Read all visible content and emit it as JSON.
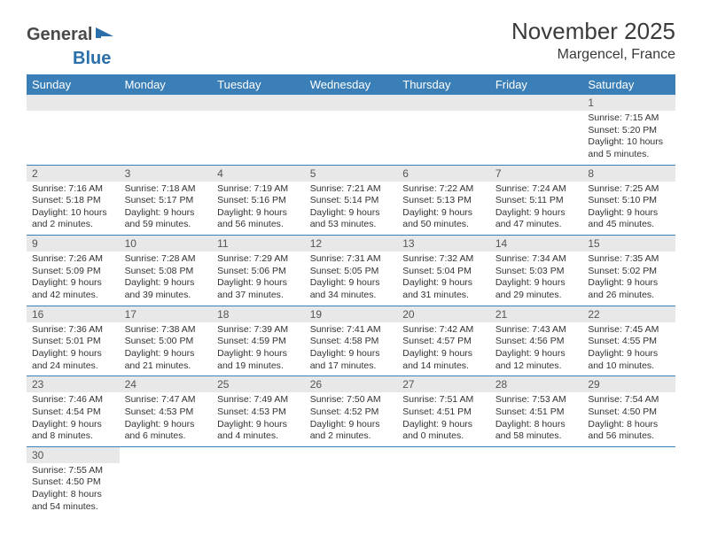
{
  "logo": {
    "part1": "General",
    "part2": "Blue"
  },
  "title": "November 2025",
  "location": "Margencel, France",
  "colors": {
    "header_bg": "#3a7fb8",
    "header_text": "#ffffff",
    "daynum_bg": "#e8e8e8",
    "row_border": "#3a7fb8",
    "logo_gray": "#4a4a4a",
    "logo_blue": "#2b6fab"
  },
  "weekdays": [
    "Sunday",
    "Monday",
    "Tuesday",
    "Wednesday",
    "Thursday",
    "Friday",
    "Saturday"
  ],
  "weeks": [
    [
      {
        "blank": true
      },
      {
        "blank": true
      },
      {
        "blank": true
      },
      {
        "blank": true
      },
      {
        "blank": true
      },
      {
        "blank": true
      },
      {
        "n": "1",
        "sunrise": "Sunrise: 7:15 AM",
        "sunset": "Sunset: 5:20 PM",
        "day1": "Daylight: 10 hours",
        "day2": "and 5 minutes."
      }
    ],
    [
      {
        "n": "2",
        "sunrise": "Sunrise: 7:16 AM",
        "sunset": "Sunset: 5:18 PM",
        "day1": "Daylight: 10 hours",
        "day2": "and 2 minutes."
      },
      {
        "n": "3",
        "sunrise": "Sunrise: 7:18 AM",
        "sunset": "Sunset: 5:17 PM",
        "day1": "Daylight: 9 hours",
        "day2": "and 59 minutes."
      },
      {
        "n": "4",
        "sunrise": "Sunrise: 7:19 AM",
        "sunset": "Sunset: 5:16 PM",
        "day1": "Daylight: 9 hours",
        "day2": "and 56 minutes."
      },
      {
        "n": "5",
        "sunrise": "Sunrise: 7:21 AM",
        "sunset": "Sunset: 5:14 PM",
        "day1": "Daylight: 9 hours",
        "day2": "and 53 minutes."
      },
      {
        "n": "6",
        "sunrise": "Sunrise: 7:22 AM",
        "sunset": "Sunset: 5:13 PM",
        "day1": "Daylight: 9 hours",
        "day2": "and 50 minutes."
      },
      {
        "n": "7",
        "sunrise": "Sunrise: 7:24 AM",
        "sunset": "Sunset: 5:11 PM",
        "day1": "Daylight: 9 hours",
        "day2": "and 47 minutes."
      },
      {
        "n": "8",
        "sunrise": "Sunrise: 7:25 AM",
        "sunset": "Sunset: 5:10 PM",
        "day1": "Daylight: 9 hours",
        "day2": "and 45 minutes."
      }
    ],
    [
      {
        "n": "9",
        "sunrise": "Sunrise: 7:26 AM",
        "sunset": "Sunset: 5:09 PM",
        "day1": "Daylight: 9 hours",
        "day2": "and 42 minutes."
      },
      {
        "n": "10",
        "sunrise": "Sunrise: 7:28 AM",
        "sunset": "Sunset: 5:08 PM",
        "day1": "Daylight: 9 hours",
        "day2": "and 39 minutes."
      },
      {
        "n": "11",
        "sunrise": "Sunrise: 7:29 AM",
        "sunset": "Sunset: 5:06 PM",
        "day1": "Daylight: 9 hours",
        "day2": "and 37 minutes."
      },
      {
        "n": "12",
        "sunrise": "Sunrise: 7:31 AM",
        "sunset": "Sunset: 5:05 PM",
        "day1": "Daylight: 9 hours",
        "day2": "and 34 minutes."
      },
      {
        "n": "13",
        "sunrise": "Sunrise: 7:32 AM",
        "sunset": "Sunset: 5:04 PM",
        "day1": "Daylight: 9 hours",
        "day2": "and 31 minutes."
      },
      {
        "n": "14",
        "sunrise": "Sunrise: 7:34 AM",
        "sunset": "Sunset: 5:03 PM",
        "day1": "Daylight: 9 hours",
        "day2": "and 29 minutes."
      },
      {
        "n": "15",
        "sunrise": "Sunrise: 7:35 AM",
        "sunset": "Sunset: 5:02 PM",
        "day1": "Daylight: 9 hours",
        "day2": "and 26 minutes."
      }
    ],
    [
      {
        "n": "16",
        "sunrise": "Sunrise: 7:36 AM",
        "sunset": "Sunset: 5:01 PM",
        "day1": "Daylight: 9 hours",
        "day2": "and 24 minutes."
      },
      {
        "n": "17",
        "sunrise": "Sunrise: 7:38 AM",
        "sunset": "Sunset: 5:00 PM",
        "day1": "Daylight: 9 hours",
        "day2": "and 21 minutes."
      },
      {
        "n": "18",
        "sunrise": "Sunrise: 7:39 AM",
        "sunset": "Sunset: 4:59 PM",
        "day1": "Daylight: 9 hours",
        "day2": "and 19 minutes."
      },
      {
        "n": "19",
        "sunrise": "Sunrise: 7:41 AM",
        "sunset": "Sunset: 4:58 PM",
        "day1": "Daylight: 9 hours",
        "day2": "and 17 minutes."
      },
      {
        "n": "20",
        "sunrise": "Sunrise: 7:42 AM",
        "sunset": "Sunset: 4:57 PM",
        "day1": "Daylight: 9 hours",
        "day2": "and 14 minutes."
      },
      {
        "n": "21",
        "sunrise": "Sunrise: 7:43 AM",
        "sunset": "Sunset: 4:56 PM",
        "day1": "Daylight: 9 hours",
        "day2": "and 12 minutes."
      },
      {
        "n": "22",
        "sunrise": "Sunrise: 7:45 AM",
        "sunset": "Sunset: 4:55 PM",
        "day1": "Daylight: 9 hours",
        "day2": "and 10 minutes."
      }
    ],
    [
      {
        "n": "23",
        "sunrise": "Sunrise: 7:46 AM",
        "sunset": "Sunset: 4:54 PM",
        "day1": "Daylight: 9 hours",
        "day2": "and 8 minutes."
      },
      {
        "n": "24",
        "sunrise": "Sunrise: 7:47 AM",
        "sunset": "Sunset: 4:53 PM",
        "day1": "Daylight: 9 hours",
        "day2": "and 6 minutes."
      },
      {
        "n": "25",
        "sunrise": "Sunrise: 7:49 AM",
        "sunset": "Sunset: 4:53 PM",
        "day1": "Daylight: 9 hours",
        "day2": "and 4 minutes."
      },
      {
        "n": "26",
        "sunrise": "Sunrise: 7:50 AM",
        "sunset": "Sunset: 4:52 PM",
        "day1": "Daylight: 9 hours",
        "day2": "and 2 minutes."
      },
      {
        "n": "27",
        "sunrise": "Sunrise: 7:51 AM",
        "sunset": "Sunset: 4:51 PM",
        "day1": "Daylight: 9 hours",
        "day2": "and 0 minutes."
      },
      {
        "n": "28",
        "sunrise": "Sunrise: 7:53 AM",
        "sunset": "Sunset: 4:51 PM",
        "day1": "Daylight: 8 hours",
        "day2": "and 58 minutes."
      },
      {
        "n": "29",
        "sunrise": "Sunrise: 7:54 AM",
        "sunset": "Sunset: 4:50 PM",
        "day1": "Daylight: 8 hours",
        "day2": "and 56 minutes."
      }
    ],
    [
      {
        "n": "30",
        "sunrise": "Sunrise: 7:55 AM",
        "sunset": "Sunset: 4:50 PM",
        "day1": "Daylight: 8 hours",
        "day2": "and 54 minutes."
      },
      {
        "tail": true
      },
      {
        "tail": true
      },
      {
        "tail": true
      },
      {
        "tail": true
      },
      {
        "tail": true
      },
      {
        "tail": true
      }
    ]
  ]
}
